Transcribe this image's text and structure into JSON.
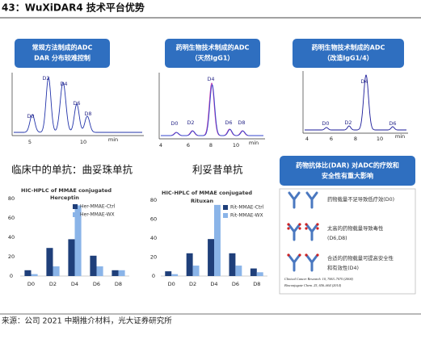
{
  "title": "43：WuXiDAR4 技术平台优势",
  "chromatograms": [
    {
      "header": [
        "常规方法制成的ADC",
        "DAR 分布较难控制"
      ],
      "peaks": [
        "D0",
        "D2",
        "D4",
        "D6",
        "D8"
      ],
      "xticks": [
        "5",
        "10",
        "min"
      ]
    },
    {
      "header": [
        "药明生物技术制成的ADC",
        "（天然IgG1）"
      ],
      "peaks": [
        "D0",
        "D2",
        "D4",
        "D6",
        "D8"
      ],
      "xticks": [
        "4",
        "6",
        "8",
        "10",
        "min"
      ]
    },
    {
      "header": [
        "药明生物技术制成的ADC",
        "（改造IgG1/4）"
      ],
      "peaks": [
        "D0",
        "D2",
        "D4",
        "D6"
      ],
      "xticks": [
        "4",
        "6",
        "8",
        "10",
        "min"
      ]
    }
  ],
  "subheadings": [
    "临床中的单抗：曲妥珠单抗",
    "利妥昔单抗"
  ],
  "chart_data": [
    {
      "type": "bar",
      "title": "HIC-HPLC of MMAE conjugated",
      "subtitle": "Herceptin",
      "categories": [
        "D0",
        "D2",
        "D4",
        "D6",
        "D8"
      ],
      "series": [
        {
          "name": "Her-MMAE-Ctrl",
          "color": "#1f3f7a",
          "values": [
            6,
            29,
            38,
            21,
            6
          ]
        },
        {
          "name": "Her-MMAE-WX",
          "color": "#8ab4e8",
          "values": [
            2,
            10,
            73,
            10,
            6
          ]
        }
      ],
      "ylim": [
        0,
        80
      ],
      "yticks": [
        0,
        20,
        40,
        60,
        80
      ]
    },
    {
      "type": "bar",
      "title": "HIC-HPLC of MMAE conjugated",
      "subtitle": "Rituxan",
      "categories": [
        "D0",
        "D2",
        "D4",
        "D6",
        "D8"
      ],
      "series": [
        {
          "name": "Rit-MMAE-Ctrl",
          "color": "#1f3f7a",
          "values": [
            5,
            24,
            39,
            24,
            8
          ]
        },
        {
          "name": "Rit-MMAE-WX",
          "color": "#8ab4e8",
          "values": [
            2,
            11,
            75,
            11,
            4
          ]
        }
      ],
      "ylim": [
        0,
        80
      ],
      "yticks": [
        0,
        20,
        40,
        60,
        80
      ]
    }
  ],
  "dar_box": {
    "header": [
      "药物抗体比(DAR) 对ADC的疗效和",
      "安全性有重大影响"
    ],
    "items": [
      [
        "药物载量不足导致低疗效(D0)"
      ],
      [
        "太高的药物载量导致毒性",
        "(D6,D8)"
      ],
      [
        "合适的药物载量可提高安全性",
        "和有效性(D4)"
      ]
    ],
    "references": [
      "Clinical Cancer Research. 10, 7063–7070 (2004)",
      "Bioconjugate Chem. 25, 656–664 (2014)"
    ]
  },
  "source": "来源：公司 2021 中期推介材料，光大证券研究所"
}
